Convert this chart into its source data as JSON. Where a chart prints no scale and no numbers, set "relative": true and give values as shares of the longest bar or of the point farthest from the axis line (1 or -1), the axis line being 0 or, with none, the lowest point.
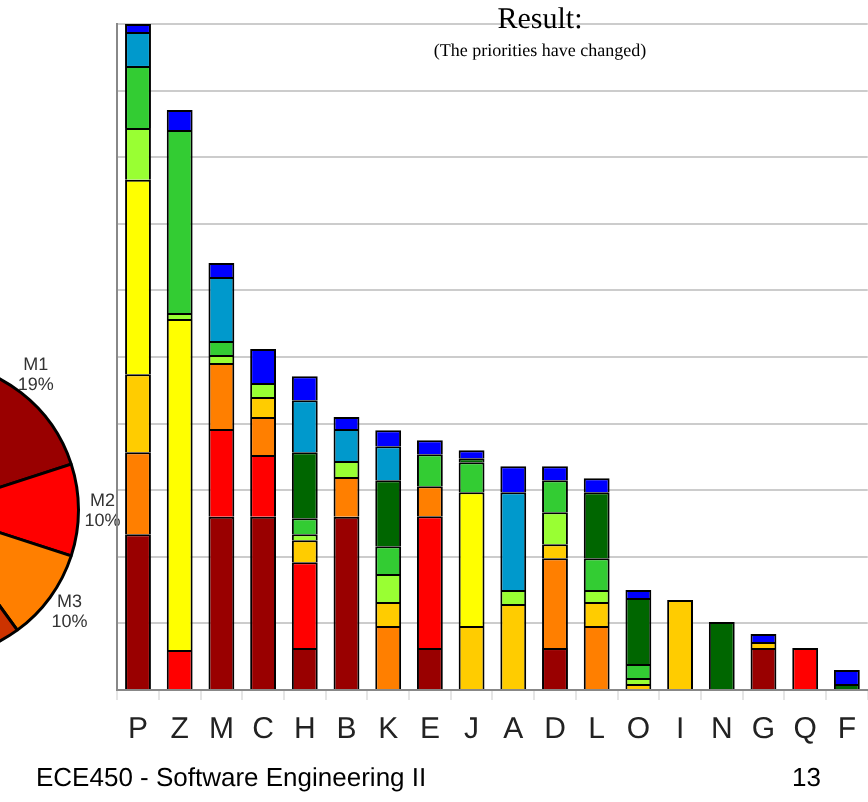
{
  "chart_data": [
    {
      "type": "bar",
      "title": "Result:",
      "subtitle": "(The priorities have changed)",
      "relative": true,
      "stacked": true,
      "grid": "y",
      "legend": false,
      "categories": [
        "P",
        "Z",
        "M",
        "C",
        "H",
        "B",
        "K",
        "E",
        "J",
        "A",
        "D",
        "L",
        "O",
        "I",
        "N",
        "G",
        "Q",
        "F"
      ],
      "series": [
        {
          "color": "#990000",
          "values": [
            0.234,
            0,
            0.26,
            0.26,
            0.063,
            0.26,
            0,
            0.063,
            0,
            0,
            0.063,
            0,
            0,
            0,
            0,
            0.063,
            0,
            0
          ]
        },
        {
          "color": "#ff0000",
          "values": [
            0,
            0.06,
            0.132,
            0.093,
            0.129,
            0,
            0,
            0.198,
            0,
            0,
            0,
            0,
            0,
            0,
            0,
            0,
            0.063,
            0
          ]
        },
        {
          "color": "#ff7f00",
          "values": [
            0.123,
            0,
            0.099,
            0.057,
            0,
            0.06,
            0.096,
            0.045,
            0,
            0,
            0.135,
            0.096,
            0,
            0,
            0,
            0,
            0,
            0
          ]
        },
        {
          "color": "#ffcc00",
          "values": [
            0.117,
            0,
            0,
            0.03,
            0.033,
            0,
            0.036,
            0,
            0.096,
            0.129,
            0.021,
            0.036,
            0.009,
            0.135,
            0,
            0.009,
            0,
            0
          ]
        },
        {
          "color": "#ffff00",
          "values": [
            0.292,
            0.497,
            0,
            0,
            0,
            0,
            0,
            0,
            0.201,
            0,
            0,
            0,
            0,
            0,
            0,
            0,
            0,
            0
          ]
        },
        {
          "color": "#99ff33",
          "values": [
            0.078,
            0.009,
            0.012,
            0.021,
            0.009,
            0.024,
            0.042,
            0,
            0,
            0.021,
            0.048,
            0.018,
            0.009,
            0,
            0,
            0,
            0,
            0
          ]
        },
        {
          "color": "#33cc33",
          "values": [
            0.093,
            0.275,
            0.021,
            0,
            0.024,
            0,
            0.042,
            0.048,
            0.045,
            0,
            0.048,
            0.048,
            0.021,
            0,
            0,
            0,
            0,
            0
          ]
        },
        {
          "color": "#006600",
          "values": [
            0,
            0,
            0,
            0,
            0.099,
            0,
            0.099,
            0,
            0.006,
            0,
            0,
            0.099,
            0.099,
            0,
            0.102,
            0,
            0,
            0.009
          ]
        },
        {
          "color": "#0099cc",
          "values": [
            0.051,
            0,
            0.096,
            0,
            0.078,
            0.048,
            0.051,
            0,
            0,
            0.147,
            0,
            0,
            0,
            0,
            0,
            0,
            0,
            0
          ]
        },
        {
          "color": "#0000ff",
          "values": [
            0.012,
            0.03,
            0.021,
            0.051,
            0.036,
            0.018,
            0.024,
            0.021,
            0.012,
            0.039,
            0.021,
            0.021,
            0.012,
            0,
            0,
            0.012,
            0,
            0.021
          ]
        }
      ],
      "annotations": [
        "ECE450 - Software Engineering II",
        "13"
      ]
    },
    {
      "type": "pie",
      "categories": [
        "M1",
        "M2",
        "M3",
        null
      ],
      "values": [
        19,
        10,
        10,
        61
      ],
      "colors": [
        "#990000",
        "#ff0000",
        "#ff7f00",
        "#cc3300"
      ],
      "value_labels": [
        "19%",
        "10%",
        "10%",
        null
      ],
      "legend": false
    }
  ]
}
